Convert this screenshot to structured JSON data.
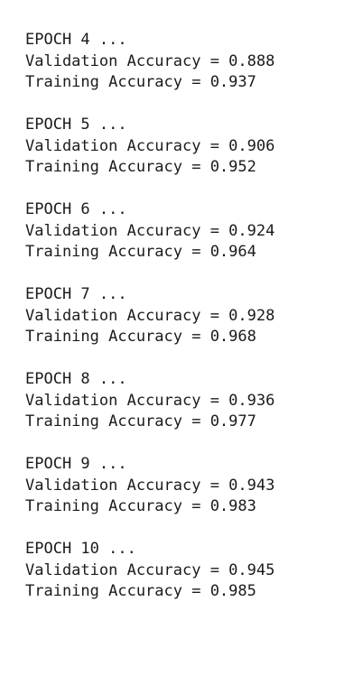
{
  "console": {
    "epochs": [
      {
        "header": "EPOCH 4 ...",
        "validation": "Validation Accuracy = 0.888",
        "training": "Training Accuracy = 0.937"
      },
      {
        "header": "EPOCH 5 ...",
        "validation": "Validation Accuracy = 0.906",
        "training": "Training Accuracy = 0.952"
      },
      {
        "header": "EPOCH 6 ...",
        "validation": "Validation Accuracy = 0.924",
        "training": "Training Accuracy = 0.964"
      },
      {
        "header": "EPOCH 7 ...",
        "validation": "Validation Accuracy = 0.928",
        "training": "Training Accuracy = 0.968"
      },
      {
        "header": "EPOCH 8 ...",
        "validation": "Validation Accuracy = 0.936",
        "training": "Training Accuracy = 0.977"
      },
      {
        "header": "EPOCH 9 ...",
        "validation": "Validation Accuracy = 0.943",
        "training": "Training Accuracy = 0.983"
      },
      {
        "header": "EPOCH 10 ...",
        "validation": "Validation Accuracy = 0.945",
        "training": "Training Accuracy = 0.985"
      }
    ]
  }
}
